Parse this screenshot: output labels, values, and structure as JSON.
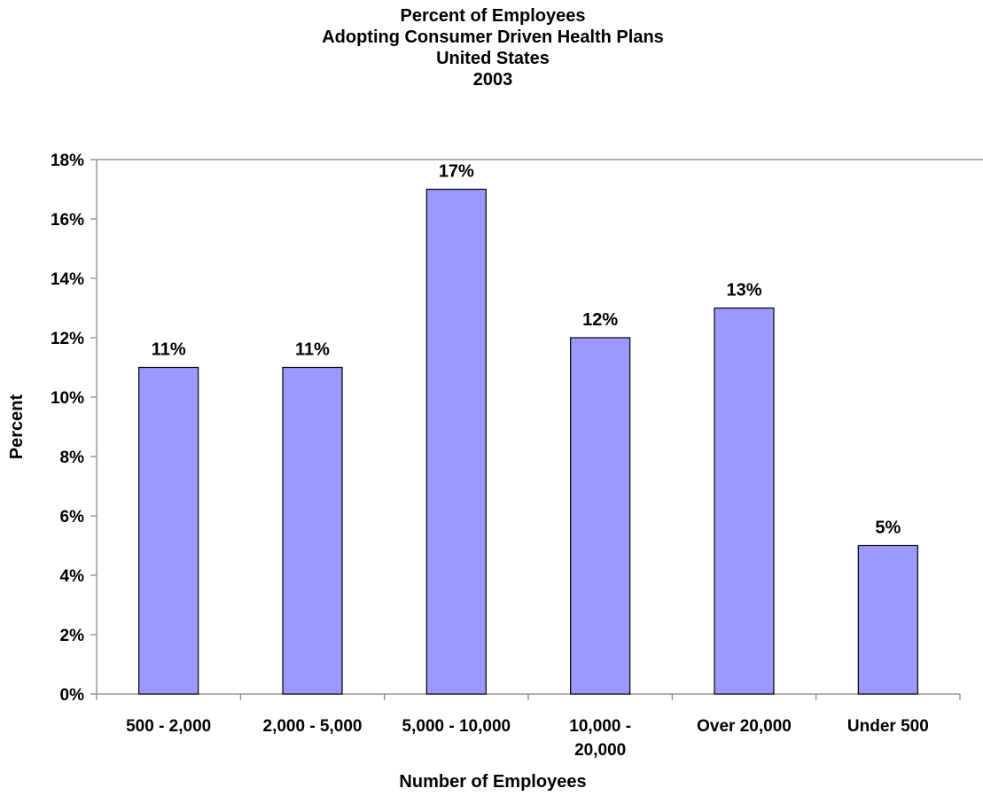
{
  "chart_data": {
    "type": "bar",
    "title": [
      "Percent of Employees",
      "Adopting Consumer Driven Health Plans",
      "United States",
      "2003"
    ],
    "xlabel": "Number of Employees",
    "ylabel": "Percent",
    "categories": [
      [
        "500 - 2,000"
      ],
      [
        "2,000 - 5,000"
      ],
      [
        "5,000 - 10,000"
      ],
      [
        "10,000 -",
        "20,000"
      ],
      [
        "Over 20,000"
      ],
      [
        "Under 500"
      ]
    ],
    "values": [
      11,
      11,
      17,
      12,
      13,
      5
    ],
    "data_labels": [
      "11%",
      "11%",
      "17%",
      "12%",
      "13%",
      "5%"
    ],
    "ylim": [
      0,
      18
    ],
    "y_ticks": [
      0,
      2,
      4,
      6,
      8,
      10,
      12,
      14,
      16,
      18
    ],
    "y_tick_labels": [
      "0%",
      "2%",
      "4%",
      "6%",
      "8%",
      "10%",
      "12%",
      "14%",
      "16%",
      "18%"
    ],
    "grid": false,
    "legend": "none",
    "colors": {
      "bar_fill": "#9999ff",
      "bar_stroke": "#000000",
      "axis": "#808080",
      "text": "#000000"
    }
  }
}
